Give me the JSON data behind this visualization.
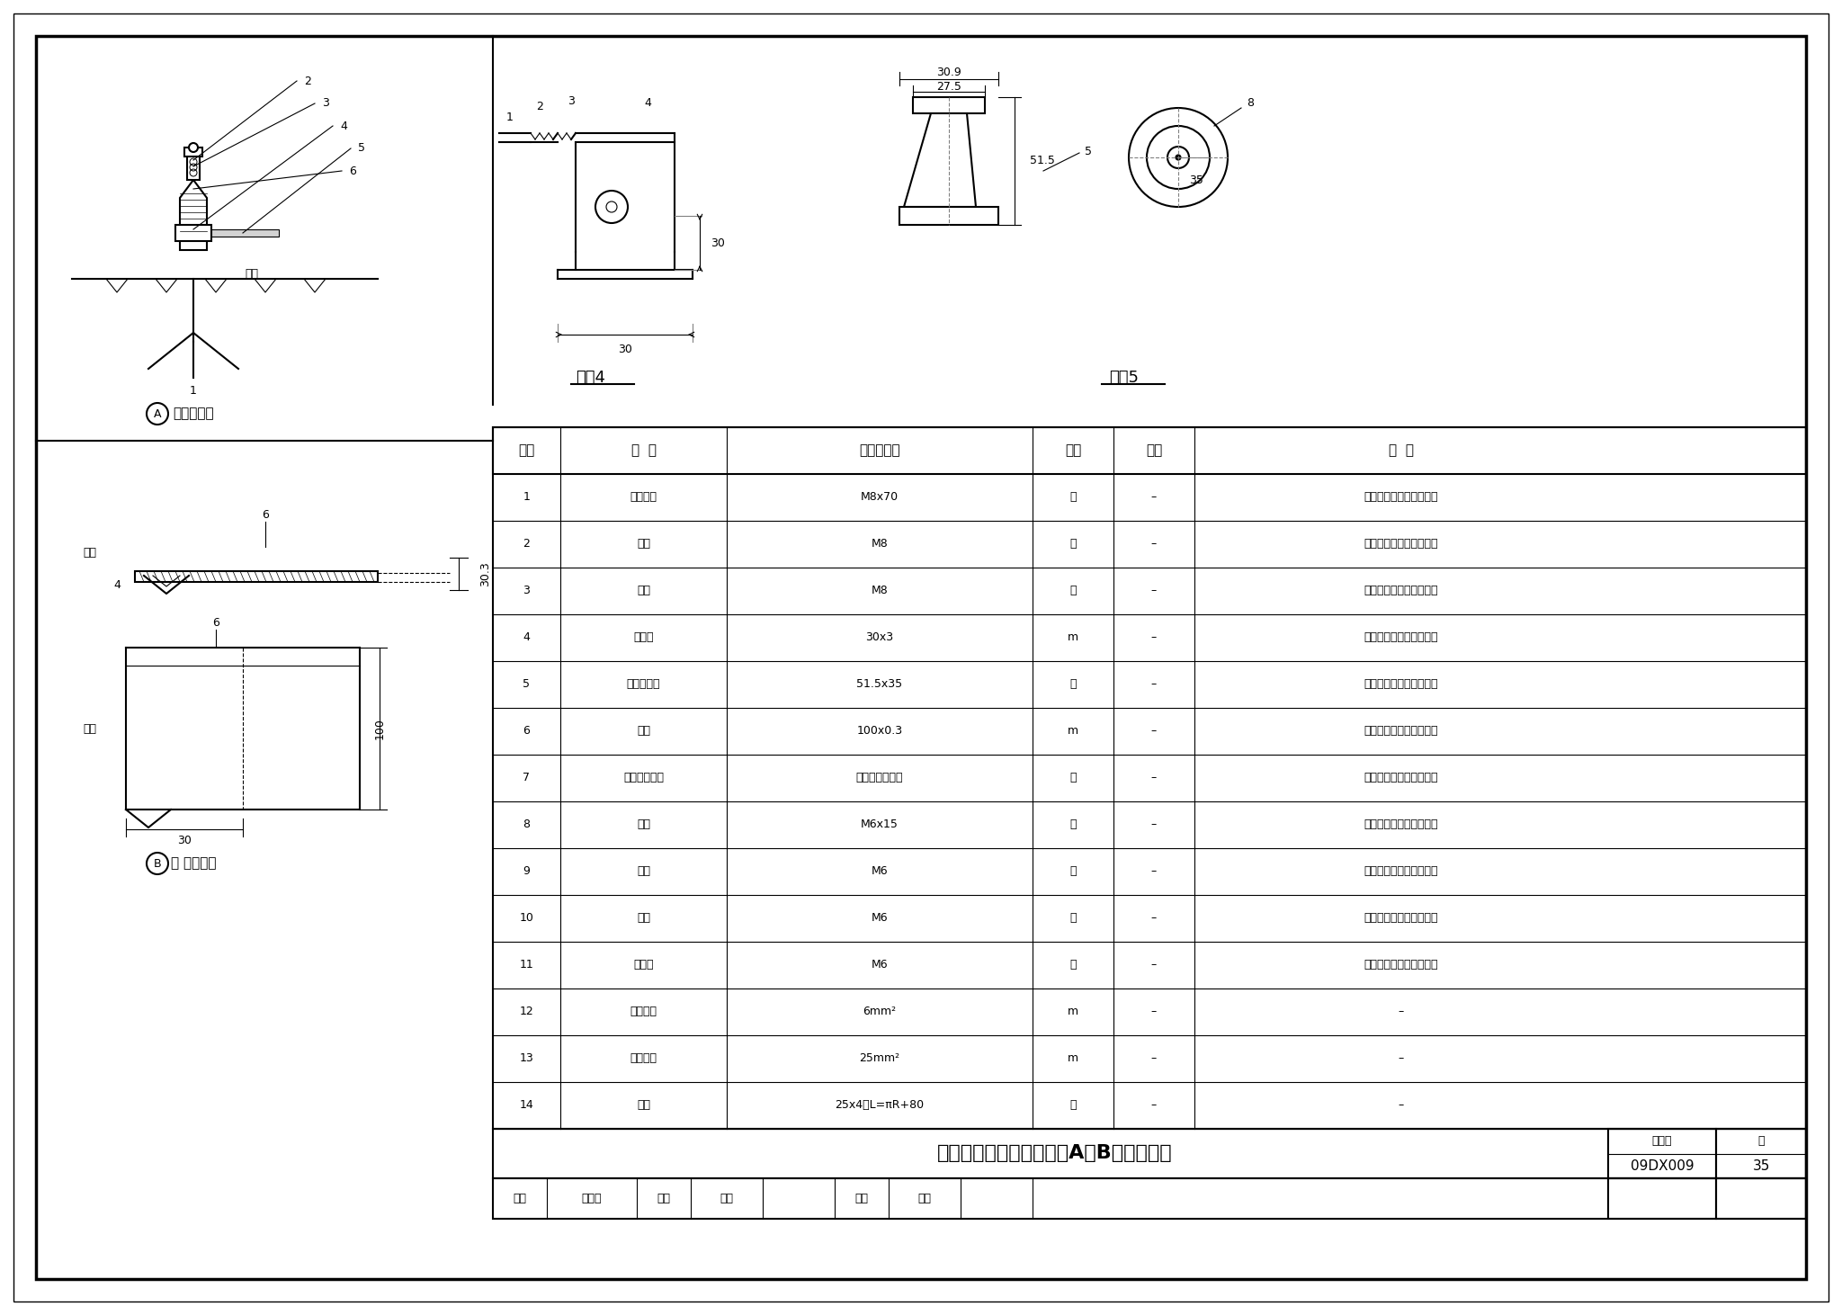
{
  "bg_color": "#ffffff",
  "border_color": "#000000",
  "table_rows": [
    {
      "no": "1",
      "name": "膨胀螺栓",
      "spec": "M8x70",
      "unit": "个",
      "qty": "–",
      "note": "数量由具体工程设计确定"
    },
    {
      "no": "2",
      "name": "螺母",
      "spec": "M8",
      "unit": "个",
      "qty": "–",
      "note": "数量由具体工程设计确定"
    },
    {
      "no": "3",
      "name": "垫圈",
      "spec": "M8",
      "unit": "个",
      "qty": "–",
      "note": "数量由具体工程设计确定"
    },
    {
      "no": "4",
      "name": "紫铜带",
      "spec": "30x3",
      "unit": "m",
      "qty": "–",
      "note": "数量由具体工程设计确定"
    },
    {
      "no": "5",
      "name": "纺锤绝缘子",
      "spec": "51.5x35",
      "unit": "个",
      "qty": "–",
      "note": "数量由具体工程设计确定"
    },
    {
      "no": "6",
      "name": "铜箔",
      "spec": "100x0.3",
      "unit": "m",
      "qty": "–",
      "note": "数量由具体工程设计确定"
    },
    {
      "no": "7",
      "name": "地板可调支架",
      "spec": "由工程设计确定",
      "unit": "个",
      "qty": "–",
      "note": "数量由具体工程设计确定"
    },
    {
      "no": "8",
      "name": "螺栓",
      "spec": "M6x15",
      "unit": "个",
      "qty": "–",
      "note": "数量由具体工程设计确定"
    },
    {
      "no": "9",
      "name": "螺母",
      "spec": "M6",
      "unit": "个",
      "qty": "–",
      "note": "数量由具体工程设计确定"
    },
    {
      "no": "10",
      "name": "垫圈",
      "spec": "M6",
      "unit": "个",
      "qty": "–",
      "note": "数量由具体工程设计确定"
    },
    {
      "no": "11",
      "name": "线鼻子",
      "spec": "M6",
      "unit": "个",
      "qty": "–",
      "note": "数量由具体工程设计确定"
    },
    {
      "no": "12",
      "name": "编织铜带",
      "spec": "6mm²",
      "unit": "m",
      "qty": "–",
      "note": "–"
    },
    {
      "no": "13",
      "name": "编织铜带",
      "spec": "25mm²",
      "unit": "m",
      "qty": "–",
      "note": "–"
    },
    {
      "no": "14",
      "name": "卡箍",
      "spec": "25x4，L=πR+80",
      "unit": "个",
      "qty": "–",
      "note": "–"
    }
  ],
  "table_header": [
    "序号",
    "名  称",
    "型号及规格",
    "单位",
    "数量",
    "备  注"
  ],
  "title_main": "等电位联结网格安装图（A、B节点详图）",
  "atlas_no_label": "图集号",
  "atlas_no": "09DX009",
  "page_label": "页",
  "page_no": "35",
  "footer_left": "审核|钟景华|校对|孙兰|设计|谭玲",
  "part4_label": "零件4",
  "part5_label": "零件5",
  "A_label": "㊄节点详图",
  "B_label": "㊅ 节点详图",
  "dim_30_9": "30.9",
  "dim_27_5": "27.5",
  "dim_51_5": "51.5",
  "dim_35": "35",
  "dim_8": "8",
  "dim_5": "5",
  "dim_30": "30",
  "dim_30b": "30",
  "dim_30_3": "30.3",
  "dim_100": "100",
  "dim_6a": "6",
  "dim_6b": "6",
  "dim_4": "4",
  "weld_label": "焊接",
  "ground_label": "地面",
  "part_labels": [
    "1",
    "2",
    "3",
    "4",
    "5",
    "6"
  ]
}
